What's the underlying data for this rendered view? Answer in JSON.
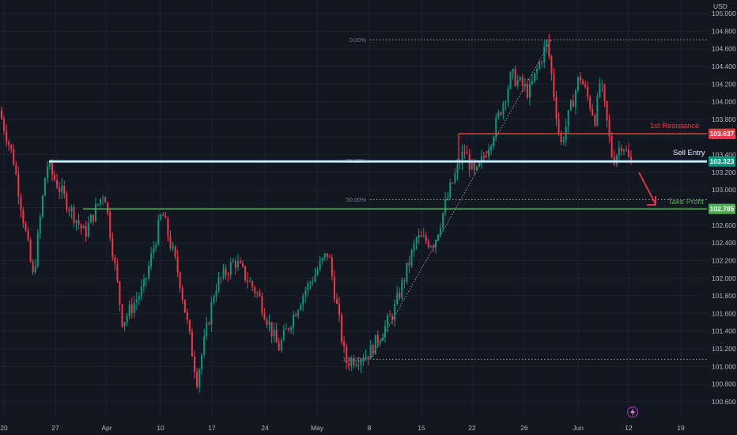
{
  "chart_data": {
    "type": "candlestick",
    "currency": "USD",
    "price_axis": {
      "ticks": [
        "105.000",
        "104.800",
        "104.600",
        "104.400",
        "104.200",
        "104.000",
        "103.800",
        "103.600",
        "103.400",
        "103.200",
        "103.000",
        "102.800",
        "102.600",
        "102.400",
        "102.200",
        "102.000",
        "101.800",
        "101.600",
        "101.400",
        "101.200",
        "101.000",
        "100.800",
        "100.600"
      ],
      "range": [
        100.55,
        105.08
      ]
    },
    "time_axis": {
      "ticks": [
        "20",
        "27",
        "Apr",
        "10",
        "17",
        "24",
        "May",
        "8",
        "15",
        "22",
        "26",
        "Jun",
        "12",
        "19"
      ]
    },
    "levels": {
      "resistance": {
        "label": "1st Resistance",
        "price": 103.637,
        "badge": "103.637",
        "color": "#f23645"
      },
      "entry": {
        "label": "Sell Entry",
        "price": 103.323,
        "badge": "103.323",
        "color": "#e3f0ff"
      },
      "take_profit": {
        "label": "Take Profit",
        "price": 102.785,
        "badge": "102.785",
        "color": "#4caf50"
      }
    },
    "fibonacci": [
      {
        "label": "0.00%",
        "price": 104.7
      },
      {
        "label": "38.20%",
        "price": 103.33
      },
      {
        "label": "50.00%",
        "price": 102.89
      },
      {
        "label": "100.00%",
        "price": 101.08
      }
    ],
    "colors": {
      "up": "#089981",
      "down": "#f23645",
      "background": "#131722",
      "grid": "#1e222d"
    }
  },
  "indicator_icon": "lightning-icon"
}
